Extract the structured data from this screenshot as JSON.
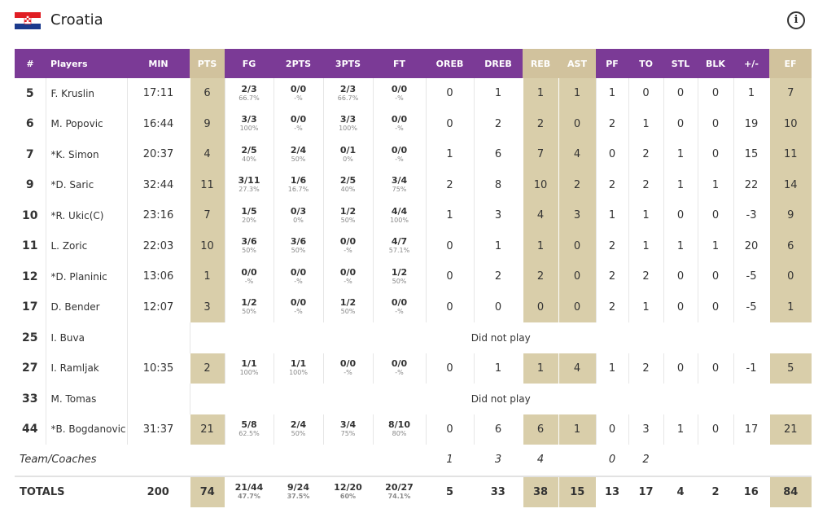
{
  "header": {
    "team": "Croatia",
    "info_icon": "info-icon"
  },
  "columns": {
    "num": "#",
    "players": "Players",
    "min": "MIN",
    "pts": "PTS",
    "fg": "FG",
    "p2": "2PTS",
    "p3": "3PTS",
    "ft": "FT",
    "oreb": "OREB",
    "dreb": "DREB",
    "reb": "REB",
    "ast": "AST",
    "pf": "PF",
    "to": "TO",
    "stl": "STL",
    "blk": "BLK",
    "pm": "+/-",
    "ef": "EF"
  },
  "players": [
    {
      "num": "5",
      "name": "F. Kruslin",
      "min": "17:11",
      "pts": "6",
      "fg": "2/3",
      "fgp": "66.7%",
      "p2": "0/0",
      "p2p": "-%",
      "p3": "2/3",
      "p3p": "66.7%",
      "ft": "0/0",
      "ftp": "-%",
      "oreb": "0",
      "dreb": "1",
      "reb": "1",
      "ast": "1",
      "pf": "1",
      "to": "0",
      "stl": "0",
      "blk": "0",
      "pm": "1",
      "ef": "7"
    },
    {
      "num": "6",
      "name": "M. Popovic",
      "min": "16:44",
      "pts": "9",
      "fg": "3/3",
      "fgp": "100%",
      "p2": "0/0",
      "p2p": "-%",
      "p3": "3/3",
      "p3p": "100%",
      "ft": "0/0",
      "ftp": "-%",
      "oreb": "0",
      "dreb": "2",
      "reb": "2",
      "ast": "0",
      "pf": "2",
      "to": "1",
      "stl": "0",
      "blk": "0",
      "pm": "19",
      "ef": "10"
    },
    {
      "num": "7",
      "name": "*K. Simon",
      "min": "20:37",
      "pts": "4",
      "fg": "2/5",
      "fgp": "40%",
      "p2": "2/4",
      "p2p": "50%",
      "p3": "0/1",
      "p3p": "0%",
      "ft": "0/0",
      "ftp": "-%",
      "oreb": "1",
      "dreb": "6",
      "reb": "7",
      "ast": "4",
      "pf": "0",
      "to": "2",
      "stl": "1",
      "blk": "0",
      "pm": "15",
      "ef": "11"
    },
    {
      "num": "9",
      "name": "*D. Saric",
      "min": "32:44",
      "pts": "11",
      "fg": "3/11",
      "fgp": "27.3%",
      "p2": "1/6",
      "p2p": "16.7%",
      "p3": "2/5",
      "p3p": "40%",
      "ft": "3/4",
      "ftp": "75%",
      "oreb": "2",
      "dreb": "8",
      "reb": "10",
      "ast": "2",
      "pf": "2",
      "to": "2",
      "stl": "1",
      "blk": "1",
      "pm": "22",
      "ef": "14"
    },
    {
      "num": "10",
      "name": "*R. Ukic(C)",
      "min": "23:16",
      "pts": "7",
      "fg": "1/5",
      "fgp": "20%",
      "p2": "0/3",
      "p2p": "0%",
      "p3": "1/2",
      "p3p": "50%",
      "ft": "4/4",
      "ftp": "100%",
      "oreb": "1",
      "dreb": "3",
      "reb": "4",
      "ast": "3",
      "pf": "1",
      "to": "1",
      "stl": "0",
      "blk": "0",
      "pm": "-3",
      "ef": "9"
    },
    {
      "num": "11",
      "name": "L. Zoric",
      "min": "22:03",
      "pts": "10",
      "fg": "3/6",
      "fgp": "50%",
      "p2": "3/6",
      "p2p": "50%",
      "p3": "0/0",
      "p3p": "-%",
      "ft": "4/7",
      "ftp": "57.1%",
      "oreb": "0",
      "dreb": "1",
      "reb": "1",
      "ast": "0",
      "pf": "2",
      "to": "1",
      "stl": "1",
      "blk": "1",
      "pm": "20",
      "ef": "6"
    },
    {
      "num": "12",
      "name": "*D. Planinic",
      "min": "13:06",
      "pts": "1",
      "fg": "0/0",
      "fgp": "-%",
      "p2": "0/0",
      "p2p": "-%",
      "p3": "0/0",
      "p3p": "-%",
      "ft": "1/2",
      "ftp": "50%",
      "oreb": "0",
      "dreb": "2",
      "reb": "2",
      "ast": "0",
      "pf": "2",
      "to": "2",
      "stl": "0",
      "blk": "0",
      "pm": "-5",
      "ef": "0"
    },
    {
      "num": "17",
      "name": "D. Bender",
      "min": "12:07",
      "pts": "3",
      "fg": "1/2",
      "fgp": "50%",
      "p2": "0/0",
      "p2p": "-%",
      "p3": "1/2",
      "p3p": "50%",
      "ft": "0/0",
      "ftp": "-%",
      "oreb": "0",
      "dreb": "0",
      "reb": "0",
      "ast": "0",
      "pf": "2",
      "to": "1",
      "stl": "0",
      "blk": "0",
      "pm": "-5",
      "ef": "1"
    },
    {
      "num": "25",
      "name": "I. Buva",
      "dnp": "Did not play"
    },
    {
      "num": "27",
      "name": "I. Ramljak",
      "min": "10:35",
      "pts": "2",
      "fg": "1/1",
      "fgp": "100%",
      "p2": "1/1",
      "p2p": "100%",
      "p3": "0/0",
      "p3p": "-%",
      "ft": "0/0",
      "ftp": "-%",
      "oreb": "0",
      "dreb": "1",
      "reb": "1",
      "ast": "4",
      "pf": "1",
      "to": "2",
      "stl": "0",
      "blk": "0",
      "pm": "-1",
      "ef": "5"
    },
    {
      "num": "33",
      "name": "M. Tomas",
      "dnp": "Did not play"
    },
    {
      "num": "44",
      "name": "*B. Bogdanovic",
      "min": "31:37",
      "pts": "21",
      "fg": "5/8",
      "fgp": "62.5%",
      "p2": "2/4",
      "p2p": "50%",
      "p3": "3/4",
      "p3p": "75%",
      "ft": "8/10",
      "ftp": "80%",
      "oreb": "0",
      "dreb": "6",
      "reb": "6",
      "ast": "1",
      "pf": "0",
      "to": "3",
      "stl": "1",
      "blk": "0",
      "pm": "17",
      "ef": "21"
    }
  ],
  "team_row": {
    "label": "Team/Coaches",
    "oreb": "1",
    "dreb": "3",
    "reb": "4",
    "pf": "0",
    "to": "2"
  },
  "totals": {
    "label": "TOTALS",
    "min": "200",
    "pts": "74",
    "fg": "21/44",
    "fgp": "47.7%",
    "p2": "9/24",
    "p2p": "37.5%",
    "p3": "12/20",
    "p3p": "60%",
    "ft": "20/27",
    "ftp": "74.1%",
    "oreb": "5",
    "dreb": "33",
    "reb": "38",
    "ast": "15",
    "pf": "13",
    "to": "17",
    "stl": "4",
    "blk": "2",
    "pm": "16",
    "ef": "84"
  },
  "colors": {
    "header_bg": "#7b3a96",
    "highlight_header": "#d1c29d",
    "highlight_cell": "#d9ceaa"
  }
}
